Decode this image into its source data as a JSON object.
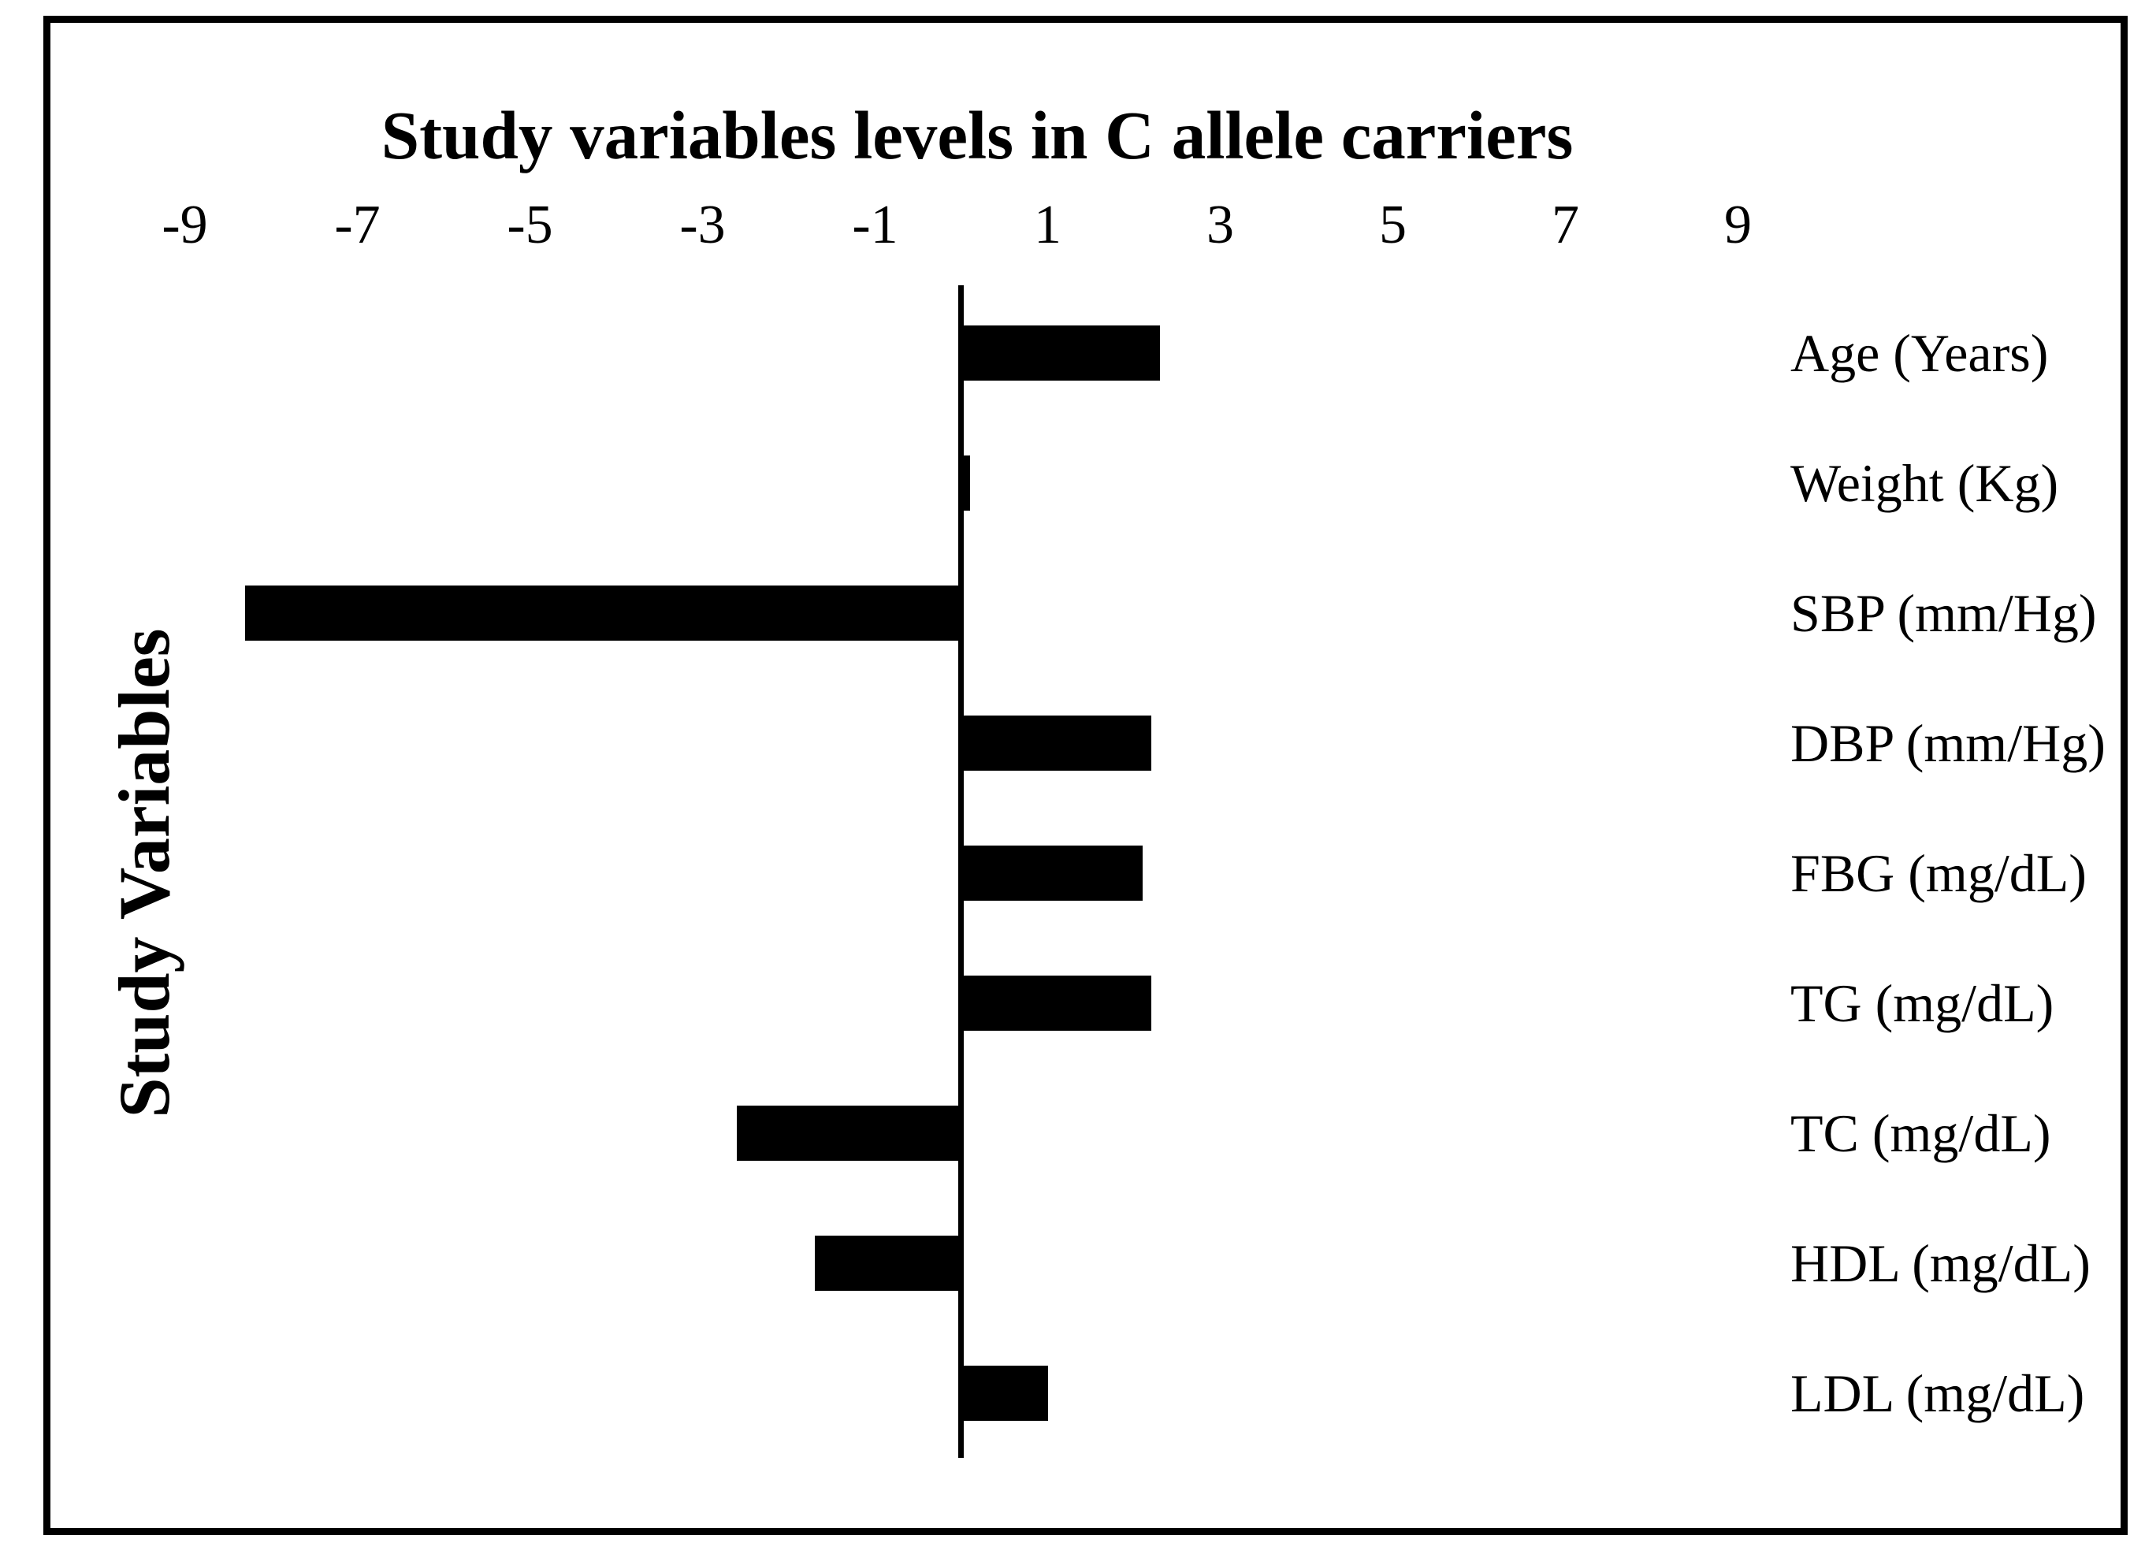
{
  "figure": {
    "background_color": "#ffffff",
    "foreground_color": "#000000"
  },
  "chart_data": {
    "type": "bar",
    "orientation": "horizontal",
    "title": "Study variables levels in C allele carriers",
    "ylabel": "Study Variables",
    "xlabel": "",
    "categories": [
      "Age (Years)",
      "Weight (Kg)",
      "SBP (mm/Hg)",
      "DBP (mm/Hg)",
      "FBG (mg/dL)",
      "TG (mg/dL)",
      "TC (mg/dL)",
      "HDL (mg/dL)",
      "LDL (mg/dL)"
    ],
    "values": [
      2.3,
      0.1,
      -8.3,
      2.2,
      2.1,
      2.2,
      -2.6,
      -1.7,
      1.0
    ],
    "xticks": [
      -9,
      -7,
      -5,
      -3,
      -1,
      1,
      3,
      5,
      7,
      9
    ],
    "xlim": [
      -9.5,
      9.5
    ],
    "bar_color": "#000000",
    "grid": false,
    "legend_position": "none",
    "category_labels_position": "right",
    "tick_labels_position": "top"
  }
}
